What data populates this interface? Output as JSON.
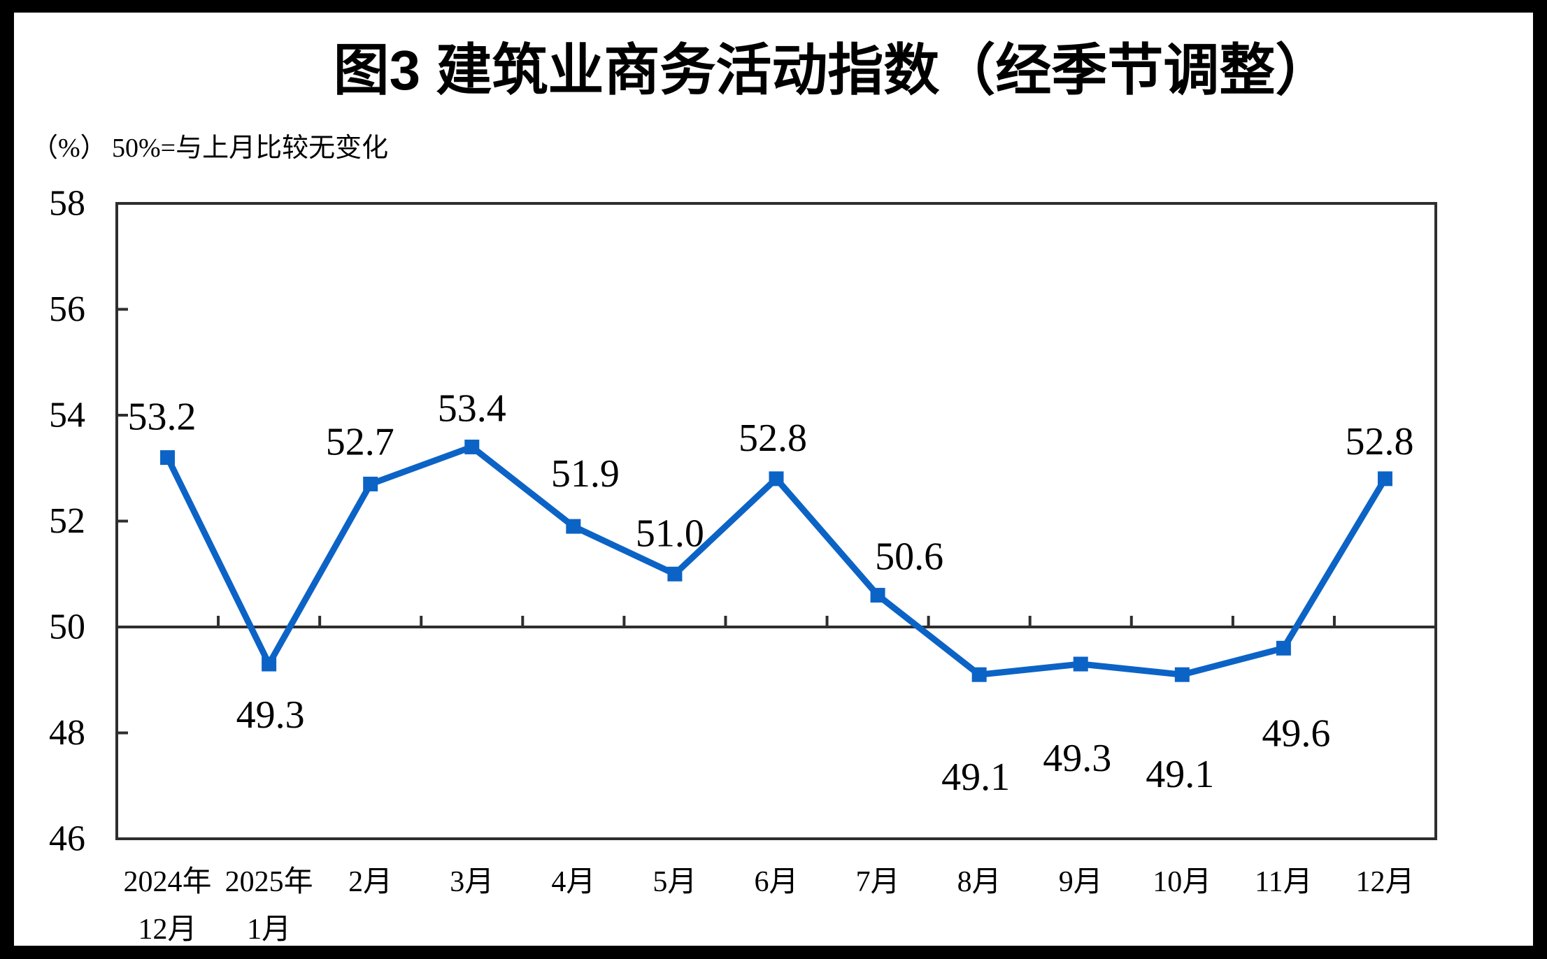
{
  "title": "图3  建筑业商务活动指数（经季节调整）",
  "subtitle": {
    "unit": "（%）",
    "note": "50%=与上月比较无变化"
  },
  "chart_data": {
    "type": "line",
    "title": "图3 建筑业商务活动指数（经季节调整）",
    "ylabel": "（%）",
    "annotation": "50%=与上月比较无变化",
    "categories": [
      [
        "2024年",
        "12月"
      ],
      [
        "2025年",
        "1月"
      ],
      [
        "2月"
      ],
      [
        "3月"
      ],
      [
        "4月"
      ],
      [
        "5月"
      ],
      [
        "6月"
      ],
      [
        "7月"
      ],
      [
        "8月"
      ],
      [
        "9月"
      ],
      [
        "10月"
      ],
      [
        "11月"
      ],
      [
        "12月"
      ]
    ],
    "series": [
      {
        "name": "建筑业商务活动指数",
        "values": [
          53.2,
          49.3,
          52.7,
          53.4,
          51.9,
          51.0,
          52.8,
          50.6,
          49.1,
          49.3,
          49.1,
          49.6,
          52.8
        ]
      }
    ],
    "data_labels": [
      "53.2",
      "49.3",
      "52.7",
      "53.4",
      "51.9",
      "51.0",
      "52.8",
      "50.6",
      "49.1",
      "49.3",
      "49.1",
      "49.6",
      "52.8"
    ],
    "ylim": [
      46,
      58
    ],
    "yticks": [
      46,
      48,
      50,
      52,
      54,
      56,
      58
    ],
    "reference_line": 50,
    "marker": "square",
    "grid": false,
    "legend": "none",
    "colors": {
      "series": "#0C63C6",
      "axis": "#2E2E2E",
      "text": "#000000",
      "background": "#FFFFFF",
      "frame": "#000000"
    }
  }
}
